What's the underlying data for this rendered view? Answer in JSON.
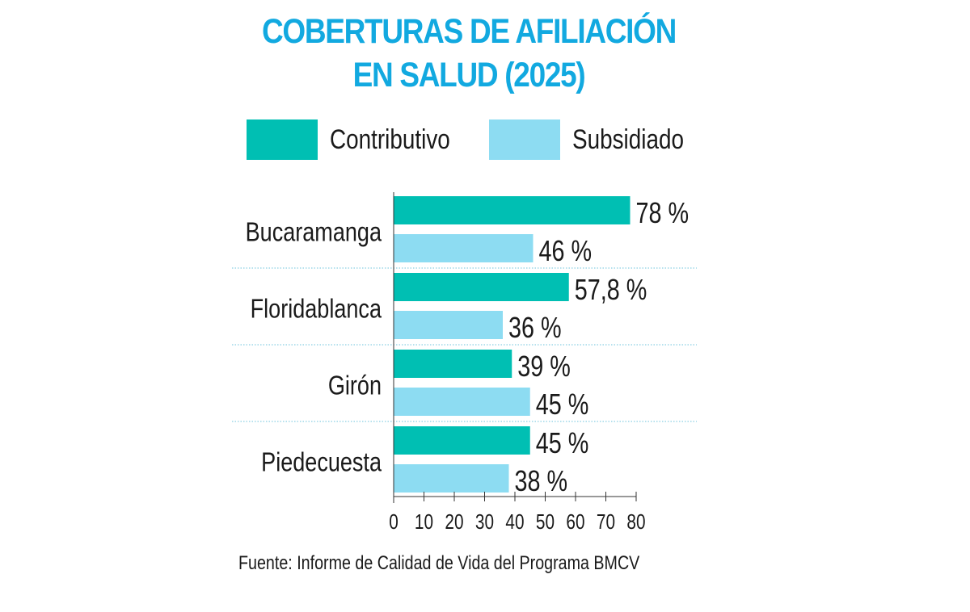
{
  "title_lines": [
    "COBERTURAS DE AFILIACIÓN",
    "EN SALUD (2025)"
  ],
  "source": "Fuente: Informe de Calidad de Vida del Programa BMCV",
  "colors": {
    "title": "#12a9e0",
    "contributivo": "#00bfb3",
    "subsidiado": "#8ddcf2",
    "grid": "#6cc3dc"
  },
  "chart_data": {
    "type": "bar",
    "orientation": "horizontal",
    "title": "COBERTURAS DE AFILIACIÓN EN SALUD (2025)",
    "categories": [
      "Bucaramanga",
      "Floridablanca",
      "Girón",
      "Piedecuesta"
    ],
    "series": [
      {
        "name": "Contributivo",
        "values": [
          78,
          57.8,
          39,
          45
        ],
        "labels": [
          "78 %",
          "57,8 %",
          "39 %",
          "45 %"
        ]
      },
      {
        "name": "Subsidiado",
        "values": [
          46,
          36,
          45,
          38
        ],
        "labels": [
          "46 %",
          "36 %",
          "45 %",
          "38 %"
        ]
      }
    ],
    "xlim": [
      0,
      80
    ],
    "xticks": [
      0,
      10,
      20,
      30,
      40,
      50,
      60,
      70,
      80
    ],
    "legend": "top",
    "grid": false
  }
}
